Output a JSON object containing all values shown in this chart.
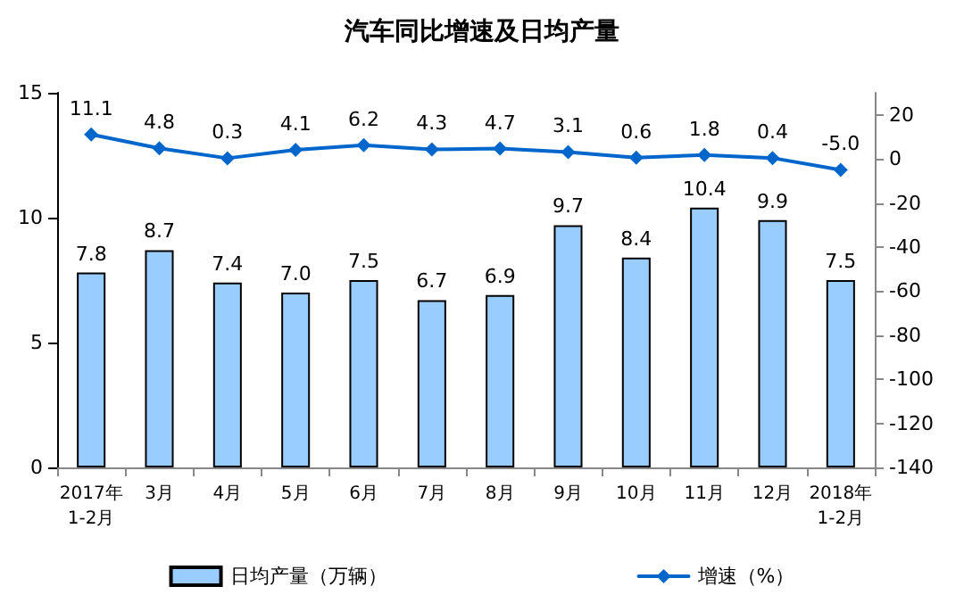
{
  "chart_data": {
    "type": "bar",
    "title": "汽车同比增速及日均产量",
    "categories": [
      "2017年\n1-2月",
      "3月",
      "4月",
      "5月",
      "6月",
      "7月",
      "8月",
      "9月",
      "10月",
      "11月",
      "12月",
      "2018年\n1-2月"
    ],
    "series": [
      {
        "name": "日均产量（万辆）",
        "color": "#99ccff",
        "values": [
          7.8,
          8.7,
          7.4,
          7.0,
          7.5,
          6.7,
          6.9,
          9.7,
          8.4,
          10.4,
          9.9,
          7.5
        ],
        "value_labels": [
          "7.8",
          "8.7",
          "7.4",
          "7.0",
          "7.5",
          "6.7",
          "6.9",
          "9.7",
          "8.4",
          "10.4",
          "9.9",
          "7.5"
        ]
      },
      {
        "name": "增速（%）",
        "type": "line",
        "axis": "y2",
        "color": "#0066cc",
        "values": [
          11.1,
          4.8,
          0.3,
          4.1,
          6.2,
          4.3,
          4.7,
          3.1,
          0.6,
          1.8,
          0.4,
          -5.0
        ],
        "value_labels": [
          "11.1",
          "4.8",
          "0.3",
          "4.1",
          "6.2",
          "4.3",
          "4.7",
          "3.1",
          "0.6",
          "1.8",
          "0.4",
          "-5.0"
        ]
      }
    ],
    "ylim": [
      0,
      15
    ],
    "yticks": [
      0,
      5,
      10,
      15
    ],
    "y2lim": [
      -140,
      30
    ],
    "y2ticks": [
      -140,
      -120,
      -100,
      -80,
      -60,
      -40,
      -20,
      0,
      20
    ],
    "legend": "bottom",
    "grid": false,
    "marker": "diamond",
    "line_style": "solid"
  }
}
